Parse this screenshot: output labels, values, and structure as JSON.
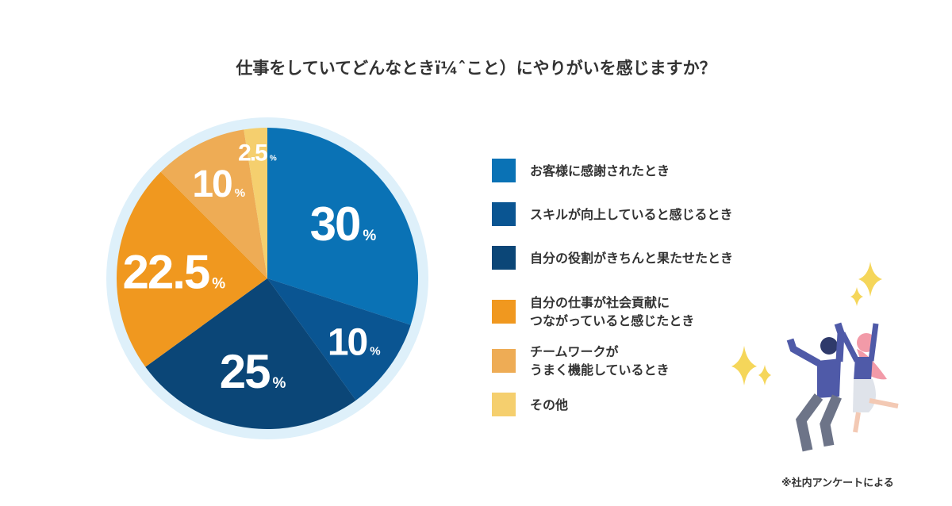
{
  "chart_data": {
    "type": "pie",
    "title": "仕事をしていてどんなときï¼ˆこと）にやりがいを感じますか？",
    "categories": [
      "お客様に感謝されたとき",
      "スキルが向上していると感じるとき",
      "自分の役割がきちんと果たせたとき",
      "自分の仕事が社会貢献に\nつながっていると感じたとき",
      "チームワークが\nうまく機能しているとき",
      "その他"
    ],
    "values": [
      30,
      10,
      25,
      22.5,
      10,
      2.5
    ],
    "unit": "%",
    "colors": [
      "#0a72b5",
      "#0a5592",
      "#0b4677",
      "#f0981f",
      "#eeac55",
      "#f5cf6e"
    ],
    "note": "※社内アンケートによる"
  }
}
